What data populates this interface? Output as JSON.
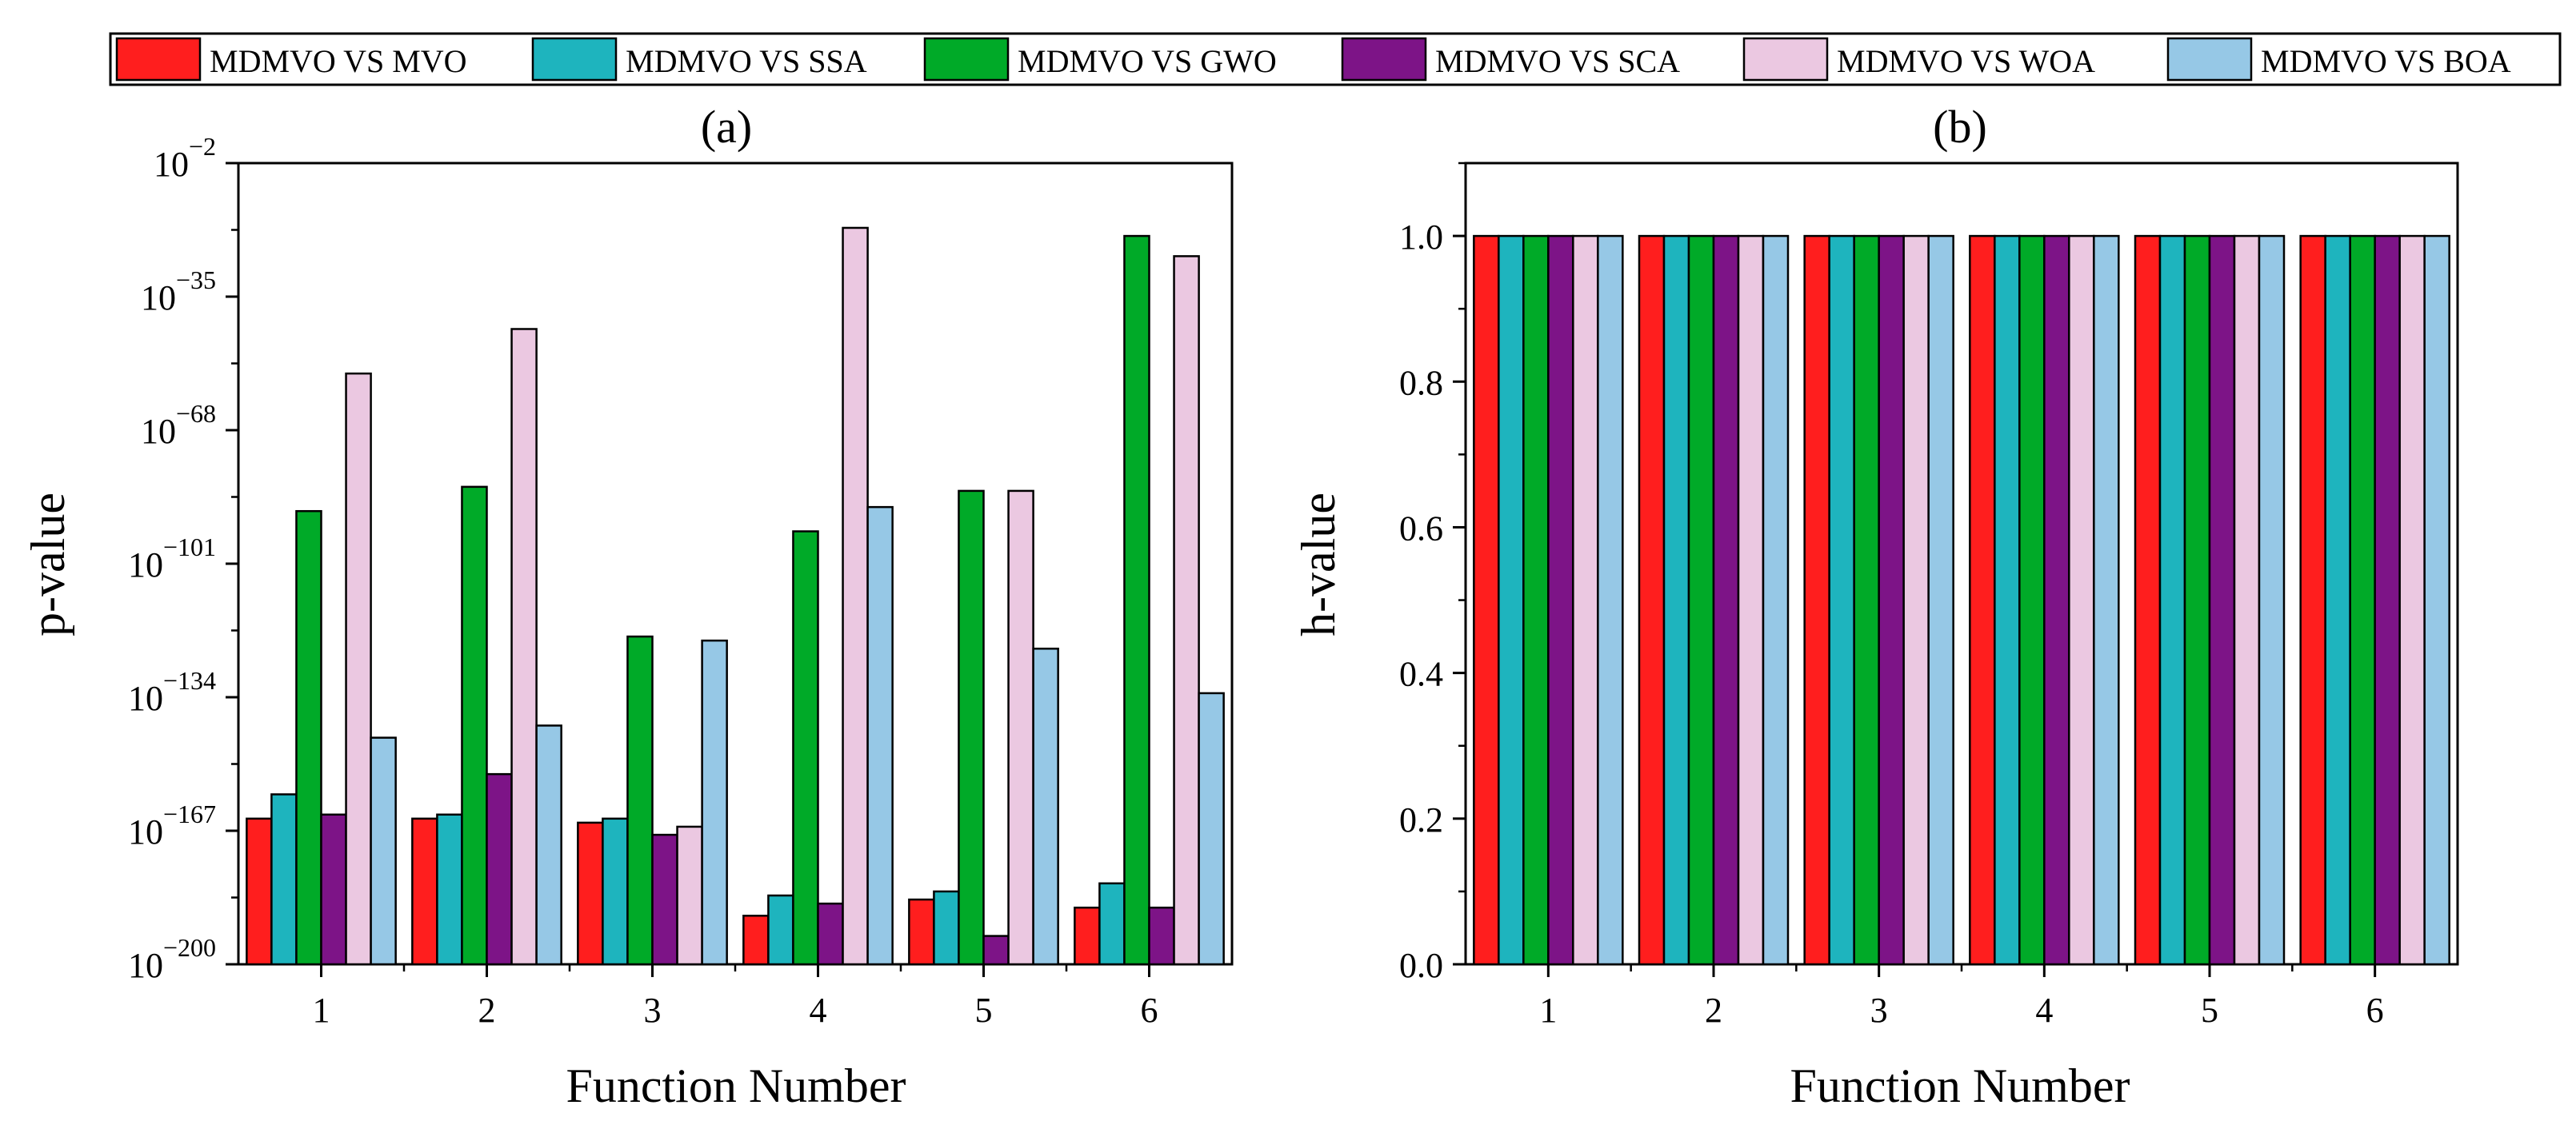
{
  "chart_data": [
    {
      "panel": "(a)",
      "type": "bar",
      "yscale": "log",
      "xlabel": "Function Number",
      "ylabel": "p-value",
      "categories": [
        "1",
        "2",
        "3",
        "4",
        "5",
        "6"
      ],
      "y_tick_exponents": [
        -200,
        -167,
        -134,
        -101,
        -68,
        -35,
        -2
      ],
      "ylim_exponent": [
        -200,
        -2
      ],
      "series": [
        {
          "name": "MDMVO VS MVO",
          "color": "#FF1E1E",
          "exponents": [
            -164,
            -164,
            -165,
            -188,
            -184,
            -186
          ]
        },
        {
          "name": "MDMVO VS SSA",
          "color": "#1EB4BE",
          "exponents": [
            -158,
            -163,
            -164,
            -183,
            -182,
            -180
          ]
        },
        {
          "name": "MDMVO VS GWO",
          "color": "#00AA28",
          "exponents": [
            -88,
            -82,
            -119,
            -93,
            -83,
            -20
          ]
        },
        {
          "name": "MDMVO VS SCA",
          "color": "#7D1487",
          "exponents": [
            -163,
            -153,
            -168,
            -185,
            -193,
            -186
          ]
        },
        {
          "name": "MDMVO VS WOA",
          "color": "#EBC8E1",
          "exponents": [
            -54,
            -43,
            -166,
            -18,
            -83,
            -25
          ]
        },
        {
          "name": "MDMVO VS BOA",
          "color": "#96C8E6",
          "exponents": [
            -144,
            -141,
            -120,
            -87,
            -122,
            -133
          ]
        }
      ]
    },
    {
      "panel": "(b)",
      "type": "bar",
      "xlabel": "Function Number",
      "ylabel": "h-value",
      "categories": [
        "1",
        "2",
        "3",
        "4",
        "5",
        "6"
      ],
      "y_ticks": [
        "0.0",
        "0.2",
        "0.4",
        "0.6",
        "0.8",
        "1.0"
      ],
      "ylim": [
        0,
        1.1
      ],
      "series": [
        {
          "name": "MDMVO VS MVO",
          "color": "#FF1E1E",
          "values": [
            1,
            1,
            1,
            1,
            1,
            1
          ]
        },
        {
          "name": "MDMVO VS SSA",
          "color": "#1EB4BE",
          "values": [
            1,
            1,
            1,
            1,
            1,
            1
          ]
        },
        {
          "name": "MDMVO VS GWO",
          "color": "#00AA28",
          "values": [
            1,
            1,
            1,
            1,
            1,
            1
          ]
        },
        {
          "name": "MDMVO VS SCA",
          "color": "#7D1487",
          "values": [
            1,
            1,
            1,
            1,
            1,
            1
          ]
        },
        {
          "name": "MDMVO VS WOA",
          "color": "#EBC8E1",
          "values": [
            1,
            1,
            1,
            1,
            1,
            1
          ]
        },
        {
          "name": "MDMVO VS BOA",
          "color": "#96C8E6",
          "values": [
            1,
            1,
            1,
            1,
            1,
            1
          ]
        }
      ]
    }
  ]
}
